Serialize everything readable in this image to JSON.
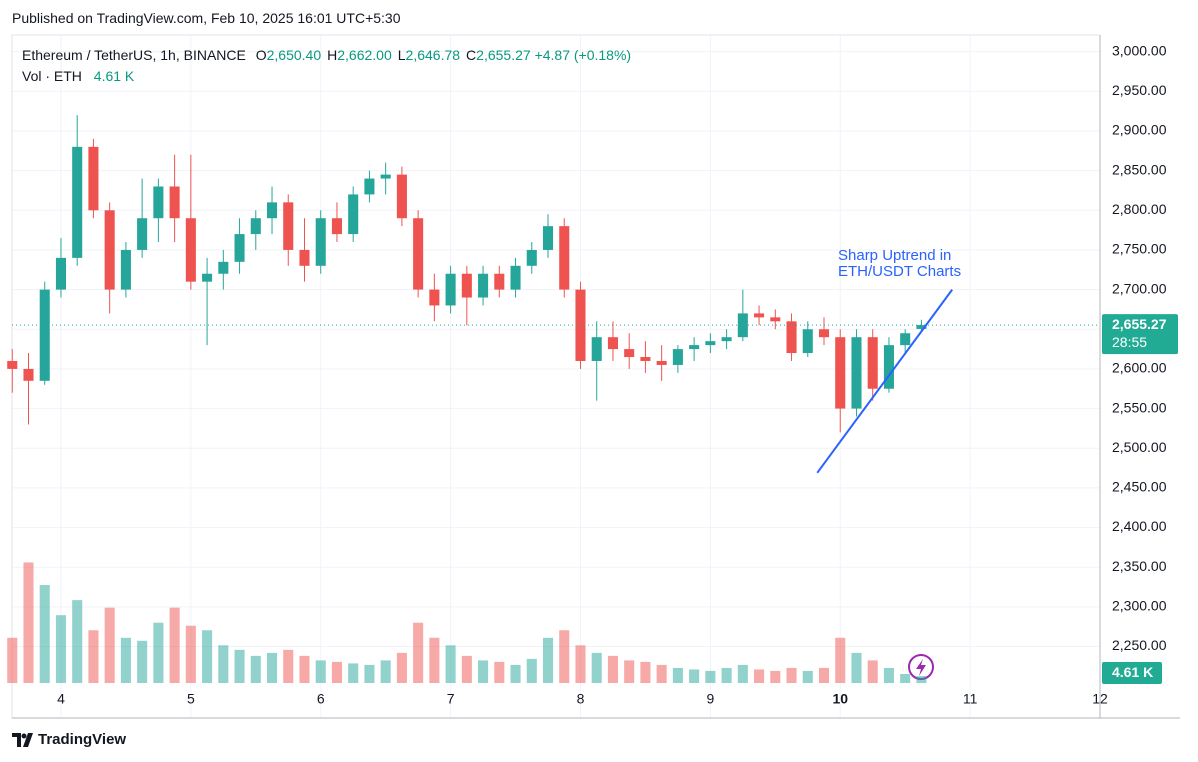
{
  "header": {
    "published": "Published on TradingView.com, Feb 10, 2025 16:01 UTC+5:30"
  },
  "legend": {
    "symbol": "Ethereum / TetherUS, 1h, BINANCE",
    "ohlc": [
      {
        "key": "O",
        "value": "2,650.40"
      },
      {
        "key": "H",
        "value": "2,662.00"
      },
      {
        "key": "L",
        "value": "2,646.78"
      },
      {
        "key": "C",
        "value": "2,655.27"
      }
    ],
    "change": "+4.87 (+0.18%)",
    "volume_label": "Vol · ETH",
    "volume_value": "4.61 K"
  },
  "footer": {
    "brand": "TradingView"
  },
  "chart_data": {
    "type": "candlestick",
    "up_color": "#26a69a",
    "down_color": "#ef5350",
    "x": [
      3.625,
      3.75,
      3.875,
      4.0,
      4.125,
      4.25,
      4.375,
      4.5,
      4.625,
      4.75,
      4.875,
      5.0,
      5.125,
      5.25,
      5.375,
      5.5,
      5.625,
      5.75,
      5.875,
      6.0,
      6.125,
      6.25,
      6.375,
      6.5,
      6.625,
      6.75,
      6.875,
      7.0,
      7.125,
      7.25,
      7.375,
      7.5,
      7.625,
      7.75,
      7.875,
      8.0,
      8.125,
      8.25,
      8.375,
      8.5,
      8.625,
      8.75,
      8.875,
      9.0,
      9.125,
      9.25,
      9.375,
      9.5,
      9.625,
      9.75,
      9.875,
      10.0,
      10.125,
      10.25,
      10.375,
      10.5,
      10.625
    ],
    "open": [
      2610,
      2600,
      2585,
      2700,
      2740,
      2880,
      2800,
      2700,
      2750,
      2790,
      2830,
      2790,
      2710,
      2720,
      2735,
      2770,
      2790,
      2810,
      2750,
      2730,
      2790,
      2770,
      2820,
      2840,
      2845,
      2790,
      2700,
      2680,
      2720,
      2690,
      2720,
      2700,
      2730,
      2750,
      2780,
      2700,
      2610,
      2640,
      2625,
      2615,
      2610,
      2605,
      2625,
      2630,
      2635,
      2640,
      2670,
      2665,
      2660,
      2620,
      2650,
      2640,
      2550,
      2640,
      2575,
      2630,
      2650.4
    ],
    "high": [
      2625,
      2620,
      2710,
      2765,
      2920,
      2890,
      2810,
      2760,
      2840,
      2840,
      2870,
      2870,
      2740,
      2750,
      2790,
      2800,
      2830,
      2820,
      2790,
      2800,
      2810,
      2830,
      2850,
      2860,
      2855,
      2800,
      2720,
      2730,
      2730,
      2730,
      2730,
      2740,
      2760,
      2795,
      2790,
      2710,
      2660,
      2660,
      2645,
      2635,
      2630,
      2630,
      2640,
      2645,
      2650,
      2700,
      2680,
      2675,
      2670,
      2660,
      2665,
      2650,
      2650,
      2650,
      2640,
      2650,
      2662
    ],
    "low": [
      2570,
      2530,
      2580,
      2690,
      2730,
      2790,
      2670,
      2690,
      2740,
      2760,
      2760,
      2700,
      2630,
      2700,
      2720,
      2750,
      2770,
      2730,
      2710,
      2720,
      2760,
      2760,
      2810,
      2820,
      2780,
      2690,
      2660,
      2670,
      2655,
      2680,
      2690,
      2690,
      2720,
      2740,
      2690,
      2600,
      2560,
      2610,
      2600,
      2595,
      2585,
      2595,
      2610,
      2620,
      2625,
      2635,
      2655,
      2650,
      2610,
      2615,
      2630,
      2520,
      2540,
      2560,
      2570,
      2620,
      2646.78
    ],
    "close": [
      2600,
      2585,
      2700,
      2740,
      2880,
      2800,
      2700,
      2750,
      2790,
      2830,
      2790,
      2710,
      2720,
      2735,
      2770,
      2790,
      2810,
      2750,
      2730,
      2790,
      2770,
      2820,
      2840,
      2845,
      2790,
      2700,
      2680,
      2720,
      2690,
      2720,
      2700,
      2730,
      2750,
      2780,
      2700,
      2610,
      2640,
      2625,
      2615,
      2610,
      2605,
      2625,
      2630,
      2635,
      2640,
      2670,
      2665,
      2660,
      2620,
      2650,
      2640,
      2550,
      2640,
      2575,
      2630,
      2645,
      2655.27
    ],
    "volume": [
      30,
      80,
      65,
      45,
      55,
      35,
      50,
      30,
      28,
      40,
      50,
      38,
      35,
      25,
      22,
      18,
      20,
      22,
      18,
      15,
      14,
      13,
      12,
      15,
      20,
      40,
      30,
      25,
      18,
      15,
      14,
      12,
      16,
      30,
      35,
      25,
      20,
      18,
      15,
      14,
      12,
      10,
      9,
      8,
      10,
      12,
      9,
      8,
      10,
      8,
      10,
      30,
      20,
      15,
      10,
      6,
      4.61
    ],
    "xlim": [
      3.623,
      12
    ],
    "xticks": [
      4,
      5,
      6,
      7,
      8,
      9,
      10,
      11,
      12
    ],
    "ylim": [
      2204,
      3021
    ],
    "yticks": [
      {
        "value": 2250,
        "label": "2,250.00"
      },
      {
        "value": 2300,
        "label": "2,300.00"
      },
      {
        "value": 2350,
        "label": "2,350.00"
      },
      {
        "value": 2400,
        "label": "2,400.00"
      },
      {
        "value": 2450,
        "label": "2,450.00"
      },
      {
        "value": 2500,
        "label": "2,500.00"
      },
      {
        "value": 2550,
        "label": "2,550.00"
      },
      {
        "value": 2600,
        "label": "2,600.00"
      },
      {
        "value": 2650,
        "label": "2,650.00"
      },
      {
        "value": 2700,
        "label": "2,700.00"
      },
      {
        "value": 2750,
        "label": "2,750.00"
      },
      {
        "value": 2800,
        "label": "2,800.00"
      },
      {
        "value": 2850,
        "label": "2,850.00"
      },
      {
        "value": 2900,
        "label": "2,900.00"
      },
      {
        "value": 2950,
        "label": "2,950.00"
      },
      {
        "value": 3000,
        "label": "3,000.00"
      }
    ],
    "y2lim": [
      0,
      430
    ],
    "grid": true,
    "last_price": {
      "value": 2655.27,
      "label": "2,655.27",
      "countdown": "28:55"
    },
    "annotation": {
      "lines": [
        "Sharp Uptrend in",
        "ETH/USDT Charts"
      ],
      "color": "#2962ff",
      "trendline": {
        "x": [
          9.823,
          10.862
        ],
        "y": [
          2469,
          2700
        ]
      }
    }
  }
}
